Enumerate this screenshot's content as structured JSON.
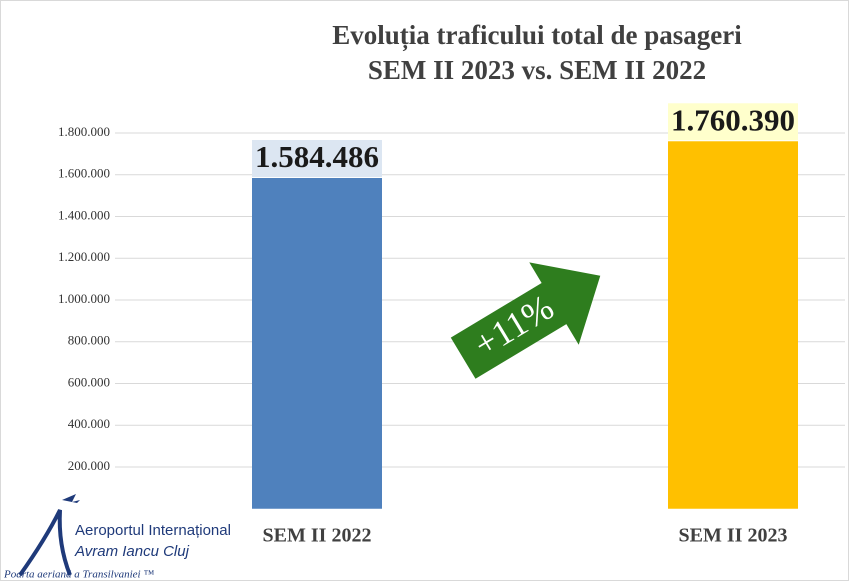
{
  "chart_data": {
    "type": "bar",
    "title": "Evoluția traficului total de pasageri",
    "subtitle": "SEM II 2023 vs. SEM II 2022",
    "categories": [
      "SEM II 2022",
      "SEM II 2023"
    ],
    "values": [
      1584486,
      1760390
    ],
    "value_labels": [
      "1.584.486",
      "1.760.390"
    ],
    "colors": [
      "#4f81bd",
      "#ffc000"
    ],
    "ylim": [
      0,
      2000000
    ],
    "yticks": [
      {
        "value": 200000,
        "label": "200.000"
      },
      {
        "value": 400000,
        "label": "400.000"
      },
      {
        "value": 600000,
        "label": "600.000"
      },
      {
        "value": 800000,
        "label": "800.000"
      },
      {
        "value": 1000000,
        "label": "1.000.000"
      },
      {
        "value": 1200000,
        "label": "1.200.000"
      },
      {
        "value": 1400000,
        "label": "1.400.000"
      },
      {
        "value": 1600000,
        "label": "1.600.000"
      },
      {
        "value": 1800000,
        "label": "1.800.000"
      }
    ],
    "grid": true,
    "annotation": "+11%"
  },
  "logo": {
    "name": "Aeroportul Internațional",
    "city": "Avram Iancu Cluj",
    "tagline": "Poarta aeriană a Transilvaniei ™"
  }
}
